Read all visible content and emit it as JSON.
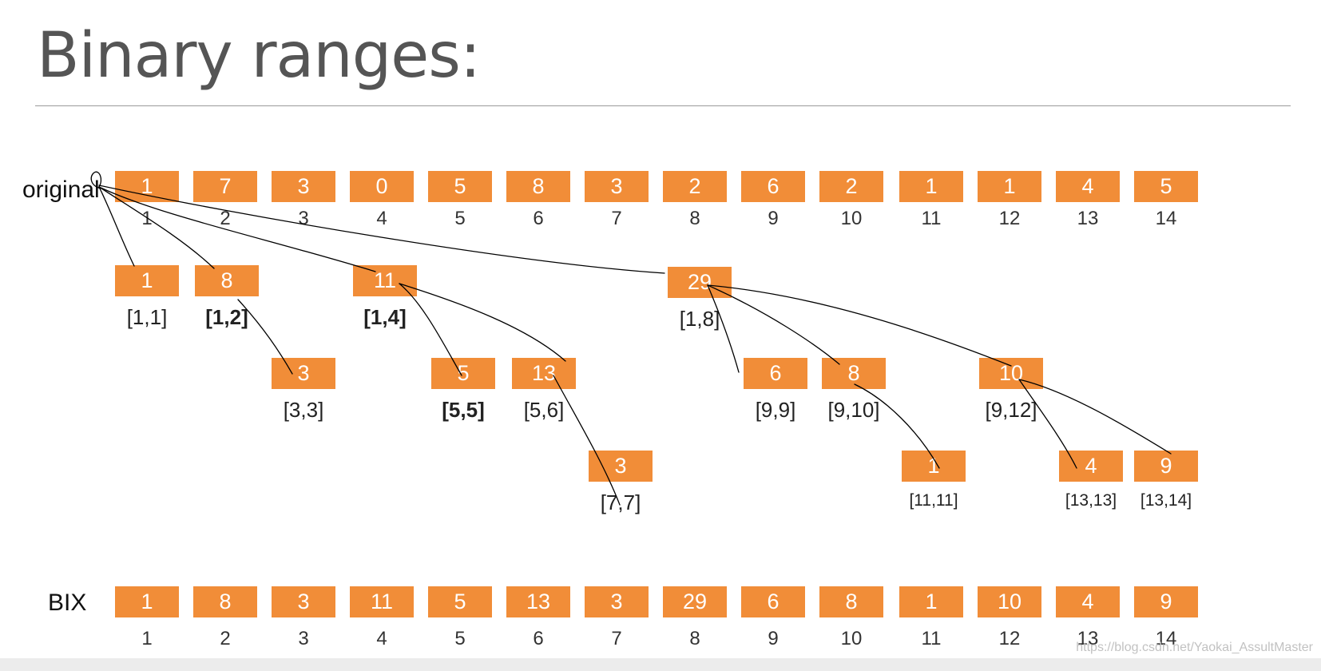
{
  "title": "Binary ranges:",
  "original": {
    "label": "original",
    "values": [
      "1",
      "7",
      "3",
      "0",
      "5",
      "8",
      "3",
      "2",
      "6",
      "2",
      "1",
      "1",
      "4",
      "5"
    ],
    "indices": [
      "1",
      "2",
      "3",
      "4",
      "5",
      "6",
      "7",
      "8",
      "9",
      "10",
      "11",
      "12",
      "13",
      "14"
    ]
  },
  "tree": [
    {
      "value": "1",
      "range": "[1,1]"
    },
    {
      "value": "8",
      "range": "[1,2]"
    },
    {
      "value": "11",
      "range": "[1,4]"
    },
    {
      "value": "29",
      "range": "[1,8]"
    },
    {
      "value": "3",
      "range": "[3,3]"
    },
    {
      "value": "5",
      "range": "[5,5]"
    },
    {
      "value": "13",
      "range": "[5,6]"
    },
    {
      "value": "6",
      "range": "[9,9]"
    },
    {
      "value": "8",
      "range": "[9,10]"
    },
    {
      "value": "10",
      "range": "[9,12]"
    },
    {
      "value": "3",
      "range": "[7,7]"
    },
    {
      "value": "1",
      "range": "[11,11]"
    },
    {
      "value": "4",
      "range": "[13,13]"
    },
    {
      "value": "9",
      "range": "[13,14]"
    }
  ],
  "bix": {
    "label": "BIX",
    "values": [
      "1",
      "8",
      "3",
      "11",
      "5",
      "13",
      "3",
      "29",
      "6",
      "8",
      "1",
      "10",
      "4",
      "9"
    ],
    "indices": [
      "1",
      "2",
      "3",
      "4",
      "5",
      "6",
      "7",
      "8",
      "9",
      "10",
      "11",
      "12",
      "13",
      "14"
    ]
  },
  "watermark": "https://blog.csdn.net/Yaokai_AssultMaster",
  "colors": {
    "cell": "#f18d38",
    "cell_text": "#ffffff",
    "ink": "#000000"
  }
}
